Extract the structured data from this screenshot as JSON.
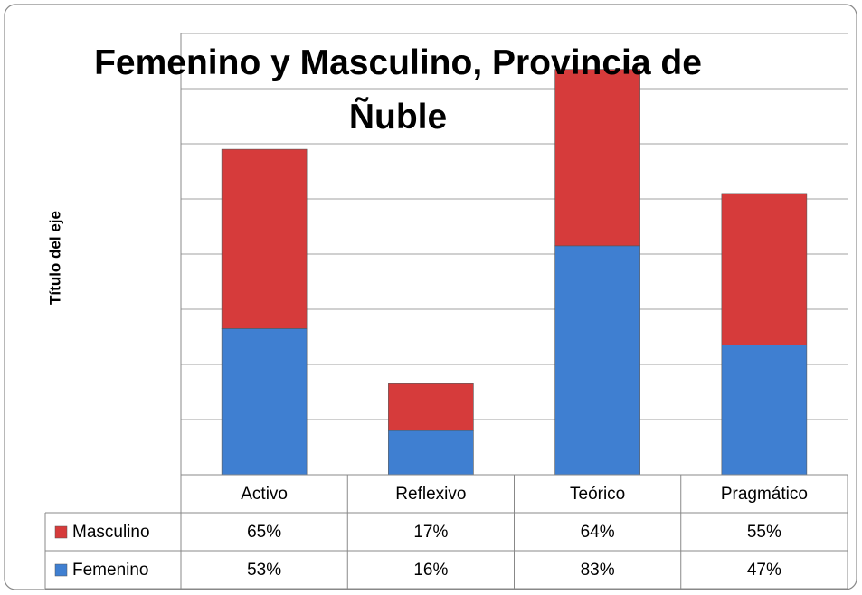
{
  "chart_data": {
    "type": "bar",
    "stacked": true,
    "title": "Femenino y Masculino, Provincia de Ñuble",
    "y_label": "Título del eje",
    "categories": [
      "Activo",
      "Reflexivo",
      "Teórico",
      "Pragmático"
    ],
    "series": [
      {
        "name": "Femenino",
        "color": "#3f7fd1",
        "values": [
          53,
          16,
          83,
          47
        ],
        "value_labels": [
          "53%",
          "16%",
          "83%",
          "47%"
        ]
      },
      {
        "name": "Masculino",
        "color": "#d63b3b",
        "values": [
          65,
          17,
          64,
          55
        ],
        "value_labels": [
          "65%",
          "17%",
          "64%",
          "55%"
        ]
      }
    ],
    "ylim": [
      0,
      160
    ],
    "yticks": [
      0,
      20,
      40,
      60,
      80,
      100,
      120,
      140,
      160
    ],
    "grid": true
  }
}
